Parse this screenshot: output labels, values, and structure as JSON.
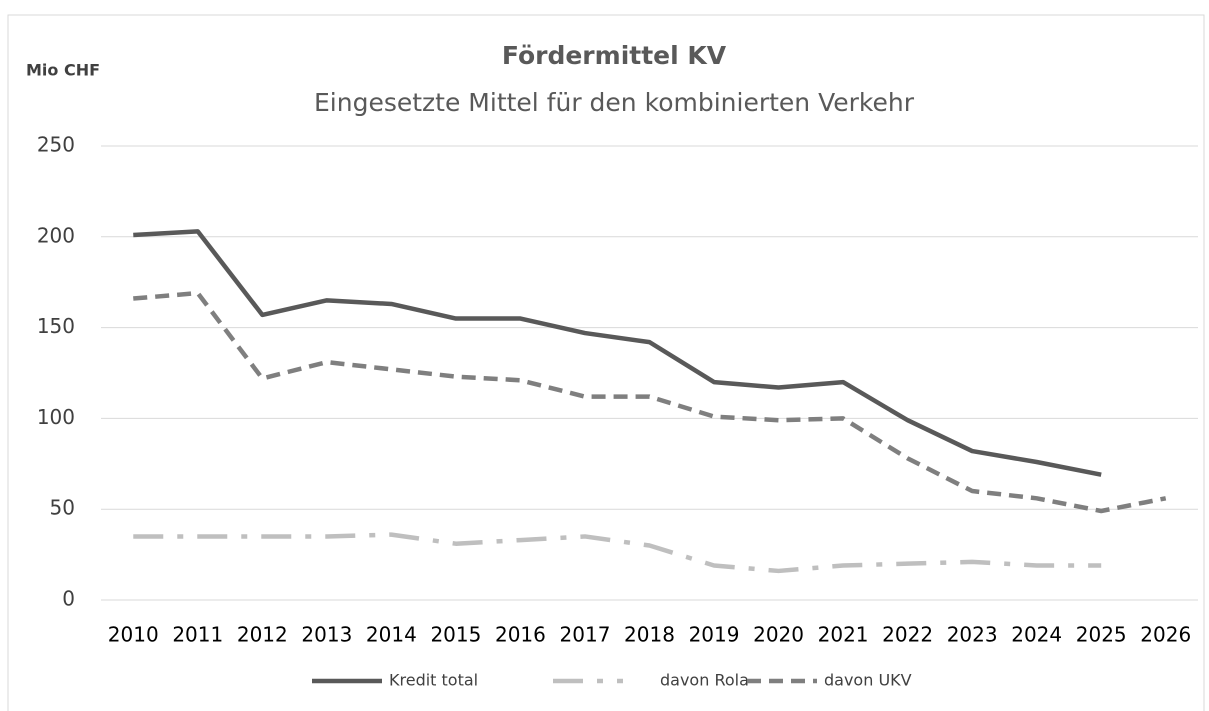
{
  "chart_data": {
    "type": "line",
    "title": "Fördermittel KV",
    "subtitle": "Eingesetzte Mittel für den kombinierten Verkehr",
    "y_label": "Mio CHF",
    "categories": [
      "2010",
      "2011",
      "2012",
      "2013",
      "2014",
      "2015",
      "2016",
      "2017",
      "2018",
      "2019",
      "2020",
      "2021",
      "2022",
      "2023",
      "2024",
      "2025",
      "2026"
    ],
    "series": [
      {
        "name": "Kredit total",
        "color": "#595959",
        "dash": "solid",
        "values": [
          201,
          203,
          157,
          165,
          163,
          155,
          155,
          147,
          142,
          120,
          117,
          120,
          99,
          82,
          76,
          69,
          null
        ]
      },
      {
        "name": "davon Rola",
        "color": "#bfbfbf",
        "dash": "dash-dot",
        "values": [
          35,
          35,
          35,
          35,
          36,
          31,
          33,
          35,
          30,
          19,
          16,
          19,
          20,
          21,
          19,
          19,
          null
        ]
      },
      {
        "name": "davon UKV",
        "color": "#7f7f7f",
        "dash": "dash",
        "values": [
          166,
          169,
          122,
          131,
          127,
          123,
          121,
          112,
          112,
          101,
          99,
          100,
          78,
          60,
          56,
          49,
          56
        ]
      }
    ],
    "ylim": [
      0,
      250
    ],
    "yticks": [
      0,
      50,
      100,
      150,
      200,
      250
    ],
    "grid": true,
    "legend": "bottom"
  }
}
